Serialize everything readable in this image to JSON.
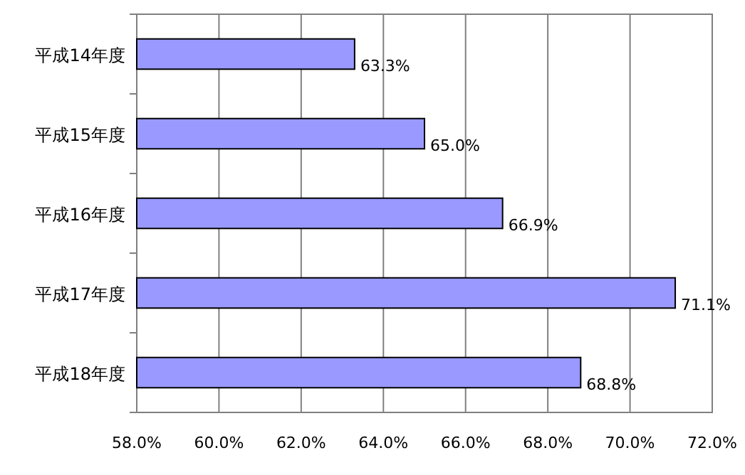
{
  "chart_data": {
    "type": "bar",
    "orientation": "horizontal",
    "categories": [
      "平成14年度",
      "平成15年度",
      "平成16年度",
      "平成17年度",
      "平成18年度"
    ],
    "values": [
      63.3,
      65.0,
      66.9,
      71.1,
      68.8
    ],
    "value_labels": [
      "63.3%",
      "65.0%",
      "66.9%",
      "71.1%",
      "68.8%"
    ],
    "color": "#9999ff",
    "xlim": [
      58,
      72
    ],
    "xticks": [
      {
        "value": 58,
        "label": "58.0%"
      },
      {
        "value": 60,
        "label": "60.0%"
      },
      {
        "value": 62,
        "label": "62.0%"
      },
      {
        "value": 64,
        "label": "64.0%"
      },
      {
        "value": 66,
        "label": "66.0%"
      },
      {
        "value": 68,
        "label": "68.0%"
      },
      {
        "value": 70,
        "label": "70.0%"
      },
      {
        "value": 72,
        "label": "72.0%"
      }
    ],
    "grid": "x"
  }
}
